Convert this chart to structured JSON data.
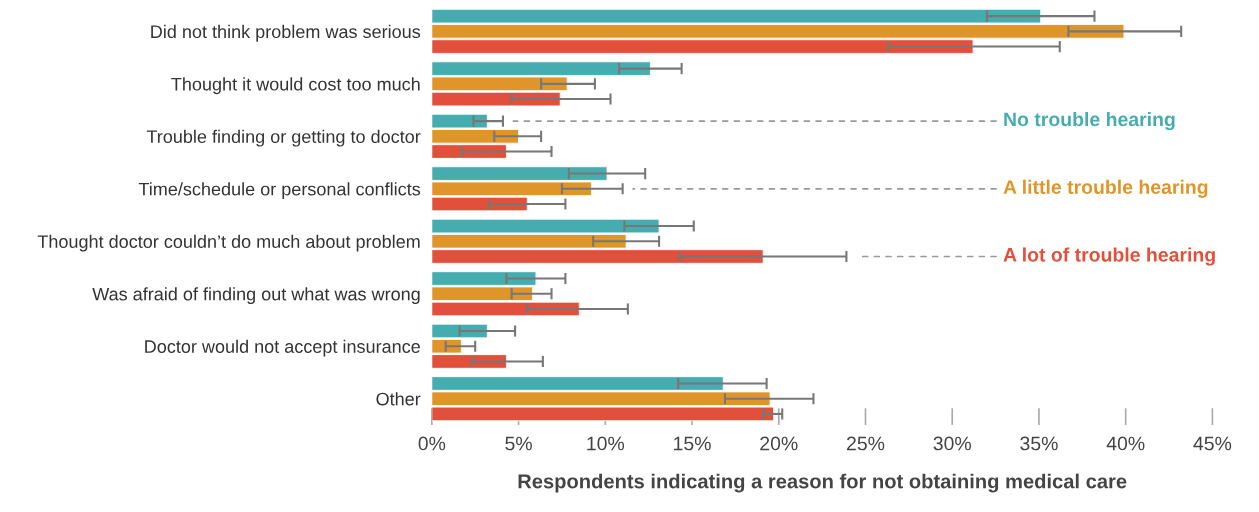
{
  "chart_data": {
    "type": "bar",
    "orientation": "horizontal",
    "xlabel": "Respondents indicating a reason for not obtaining medical care",
    "categories": [
      "Did not think problem was serious",
      "Thought it would cost too much",
      "Trouble finding or getting to doctor",
      "Time/schedule or personal conflicts",
      "Thought doctor couldn’t do much about problem",
      "Was afraid of finding out what was wrong",
      "Doctor would not accept insurance",
      "Other"
    ],
    "series": [
      {
        "name": "No trouble hearing",
        "color": "#45adb0",
        "values": [
          35.1,
          12.6,
          3.2,
          10.1,
          13.1,
          6.0,
          3.2,
          16.8
        ],
        "errors": [
          [
            32.0,
            38.2
          ],
          [
            10.8,
            14.4
          ],
          [
            2.4,
            4.1
          ],
          [
            7.9,
            12.3
          ],
          [
            11.1,
            15.1
          ],
          [
            4.3,
            7.7
          ],
          [
            1.6,
            4.8
          ],
          [
            14.2,
            19.3
          ]
        ]
      },
      {
        "name": "A little trouble hearing",
        "color": "#e0952a",
        "values": [
          39.9,
          7.8,
          5.0,
          9.2,
          11.2,
          5.8,
          1.7,
          19.5
        ],
        "errors": [
          [
            36.7,
            43.2
          ],
          [
            6.3,
            9.4
          ],
          [
            3.6,
            6.3
          ],
          [
            7.5,
            11.0
          ],
          [
            9.3,
            13.1
          ],
          [
            4.6,
            6.9
          ],
          [
            0.8,
            2.5
          ],
          [
            16.9,
            22.0
          ]
        ]
      },
      {
        "name": "A lot of trouble hearing",
        "color": "#e24f3a",
        "values": [
          31.2,
          7.4,
          4.3,
          5.5,
          19.1,
          8.5,
          4.3,
          19.7
        ],
        "errors": [
          [
            26.3,
            36.2
          ],
          [
            4.6,
            10.3
          ],
          [
            1.7,
            6.9
          ],
          [
            3.3,
            7.7
          ],
          [
            14.3,
            23.9
          ],
          [
            5.5,
            11.3
          ],
          [
            2.3,
            6.4
          ],
          [
            19.1,
            20.2
          ]
        ]
      }
    ],
    "xlim": [
      0,
      45
    ],
    "xticks": [
      {
        "value": 0,
        "label": "0%"
      },
      {
        "value": 5,
        "label": "5%"
      },
      {
        "value": 10,
        "label": "10%"
      },
      {
        "value": 15,
        "label": "15%"
      },
      {
        "value": 20,
        "label": "20%"
      },
      {
        "value": 25,
        "label": "25%"
      },
      {
        "value": 30,
        "label": "30%"
      },
      {
        "value": 35,
        "label": "35%"
      },
      {
        "value": 40,
        "label": "40%"
      },
      {
        "value": 45,
        "label": "45%"
      }
    ],
    "grid": false,
    "legend": false
  }
}
